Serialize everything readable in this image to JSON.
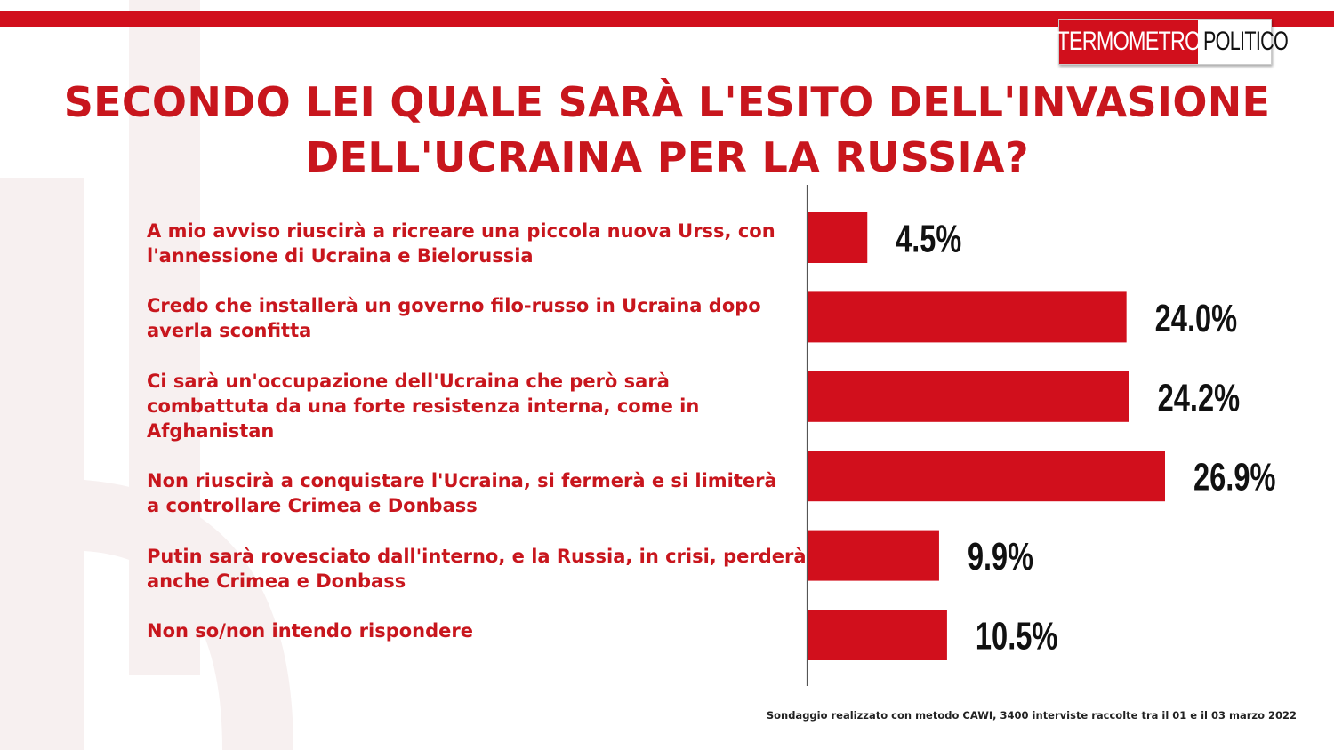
{
  "logo": {
    "left": "TERMOMETRO",
    "right": "POLITICO"
  },
  "title_line1": "SECONDO LEI QUALE SARÀ L'ESITO DELL'INVASIONE",
  "title_line2": "DELL'UCRAINA PER LA RUSSIA?",
  "footnote": "Sondaggio realizzato con metodo CAWI, 3400 interviste raccolte tra il 01 e il 03 marzo 2022",
  "colors": {
    "accent": "#d10f1c",
    "bar": "#d10f1c",
    "text_red": "#c8161d"
  },
  "chart_data": {
    "type": "bar",
    "orientation": "horizontal",
    "title": "SECONDO LEI QUALE SARÀ L'ESITO DELL'INVASIONE DELL'UCRAINA PER LA RUSSIA?",
    "categories": [
      [
        "A mio avviso riuscirà  a ricreare una piccola nuova Urss, con",
        "l'annessione di Ucraina e Bielorussia"
      ],
      [
        "Credo che installerà  un governo filo-russo in Ucraina dopo",
        "averla sconfitta"
      ],
      [
        "Ci sarà  un'occupazione dell'Ucraina che però sarà",
        "combattuta da una forte resistenza interna, come in",
        "Afghanistan"
      ],
      [
        "Non riuscirà  a conquistare l'Ucraina, si fermerà  e si limiterà",
        "a controllare Crimea e Donbass"
      ],
      [
        "Putin sarà  rovesciato dall'interno, e la Russia, in crisi, perderà",
        "anche Crimea e Donbass"
      ],
      [
        "Non so/non intendo rispondere"
      ]
    ],
    "values": [
      4.5,
      24.0,
      24.2,
      26.9,
      9.9,
      10.5
    ],
    "value_labels": [
      "4.5%",
      "24.0%",
      "24.2%",
      "26.9%",
      "9.9%",
      "10.5%"
    ],
    "xlim": [
      0,
      30
    ],
    "legend": "none",
    "grid": false
  }
}
